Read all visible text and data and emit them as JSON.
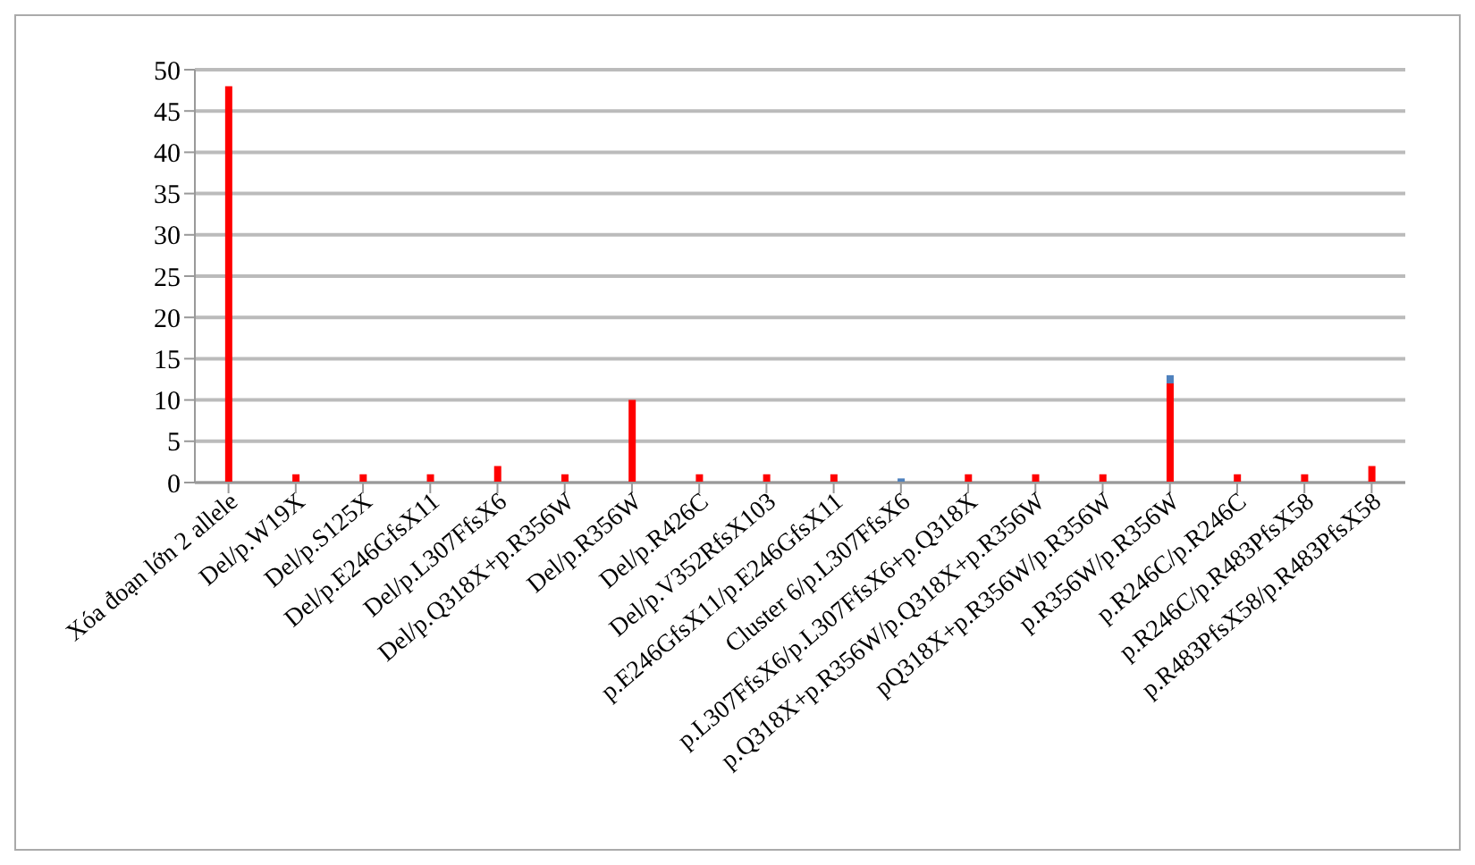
{
  "chart_data": {
    "type": "bar",
    "stacked": true,
    "categories": [
      "Xóa đoạn lớn 2 allele",
      "Del/p.W19X",
      "Del/p.S125X",
      "Del/p.E246GfsX11",
      "Del/p.L307FfsX6",
      "Del/p.Q318X+p.R356W",
      "Del/p.R356W",
      "Del/p.R426C",
      "Del/p.V352RfsX103",
      "p.E246GfsX11/p.E246GfsX11",
      "Cluster 6/p.L307FfsX6",
      "p.L307FfsX6/p.L307FfsX6+p.Q318X",
      "p.Q318X+p.R356W/p.Q318X+p.R356W",
      "pQ318X+p.R356W/p.R356W",
      "p.R356W/p.R356W",
      "p.R246C/p.R246C",
      "p.R246C/p.R483PfsX58",
      "p.R483PfsX58/p.R483PfsX58"
    ],
    "series": [
      {
        "color": "#ff0000",
        "values": [
          48,
          1,
          1,
          1,
          2,
          1,
          10,
          1,
          1,
          1,
          0,
          1,
          1,
          1,
          12,
          1,
          1,
          2
        ]
      },
      {
        "color": "#4f81bd",
        "values": [
          0,
          0,
          0,
          0,
          0,
          0,
          0,
          0,
          0,
          0,
          0.5,
          0,
          0,
          0,
          1,
          0,
          0,
          0
        ]
      }
    ],
    "ylim": [
      0,
      50
    ],
    "yticks": [
      0,
      5,
      10,
      15,
      20,
      25,
      30,
      35,
      40,
      45,
      50
    ],
    "grid": "y",
    "legend": false
  }
}
